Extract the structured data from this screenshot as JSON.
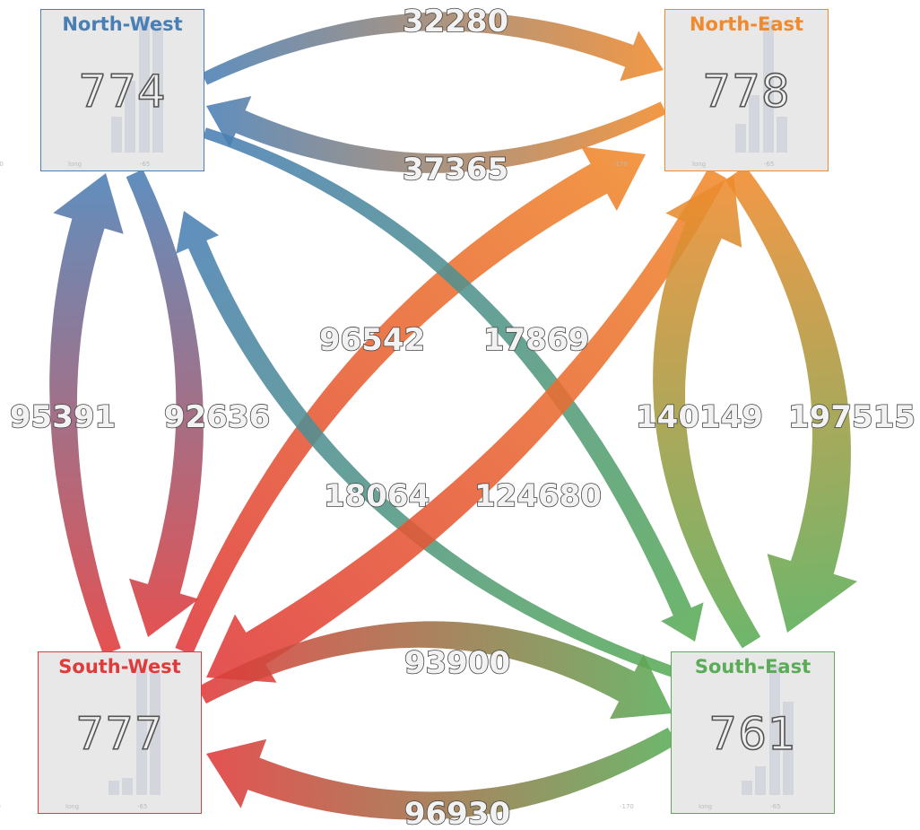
{
  "regions": [
    {
      "id": "nw",
      "name": "North-West",
      "count": "774",
      "color": "#4a7fb5",
      "bars": [
        0.25,
        0.5,
        0.95,
        0.9
      ],
      "ticks": [
        "-170",
        "long",
        "-65"
      ]
    },
    {
      "id": "ne",
      "name": "North-East",
      "count": "778",
      "color": "#f08a2c",
      "bars": [
        0.2,
        0.4,
        0.92,
        0.25
      ],
      "ticks": [
        "-170",
        "long",
        "-65"
      ]
    },
    {
      "id": "sw",
      "name": "South-West",
      "count": "777",
      "color": "#e03a3a",
      "bars": [
        0.1,
        0.12,
        0.88,
        0.85
      ],
      "ticks": [
        "-170",
        "long",
        "-65"
      ]
    },
    {
      "id": "se",
      "name": "South-East",
      "count": "761",
      "color": "#5aac57",
      "bars": [
        0.1,
        0.2,
        0.9,
        0.65
      ],
      "ticks": [
        "-170",
        "long",
        "-65"
      ]
    }
  ],
  "flows": [
    {
      "from": "nw",
      "to": "ne",
      "value": "32280"
    },
    {
      "from": "ne",
      "to": "nw",
      "value": "37365"
    },
    {
      "from": "sw",
      "to": "nw",
      "value": "95391"
    },
    {
      "from": "nw",
      "to": "sw",
      "value": "92636"
    },
    {
      "from": "sw",
      "to": "ne",
      "value": "96542"
    },
    {
      "from": "nw",
      "to": "se",
      "value": "17869"
    },
    {
      "from": "se",
      "to": "nw",
      "value": "18064"
    },
    {
      "from": "ne",
      "to": "sw",
      "value": "124680"
    },
    {
      "from": "se",
      "to": "ne",
      "value": "140149"
    },
    {
      "from": "ne",
      "to": "se",
      "value": "197515"
    },
    {
      "from": "sw",
      "to": "se",
      "value": "93900"
    },
    {
      "from": "se",
      "to": "sw",
      "value": "96930"
    }
  ]
}
